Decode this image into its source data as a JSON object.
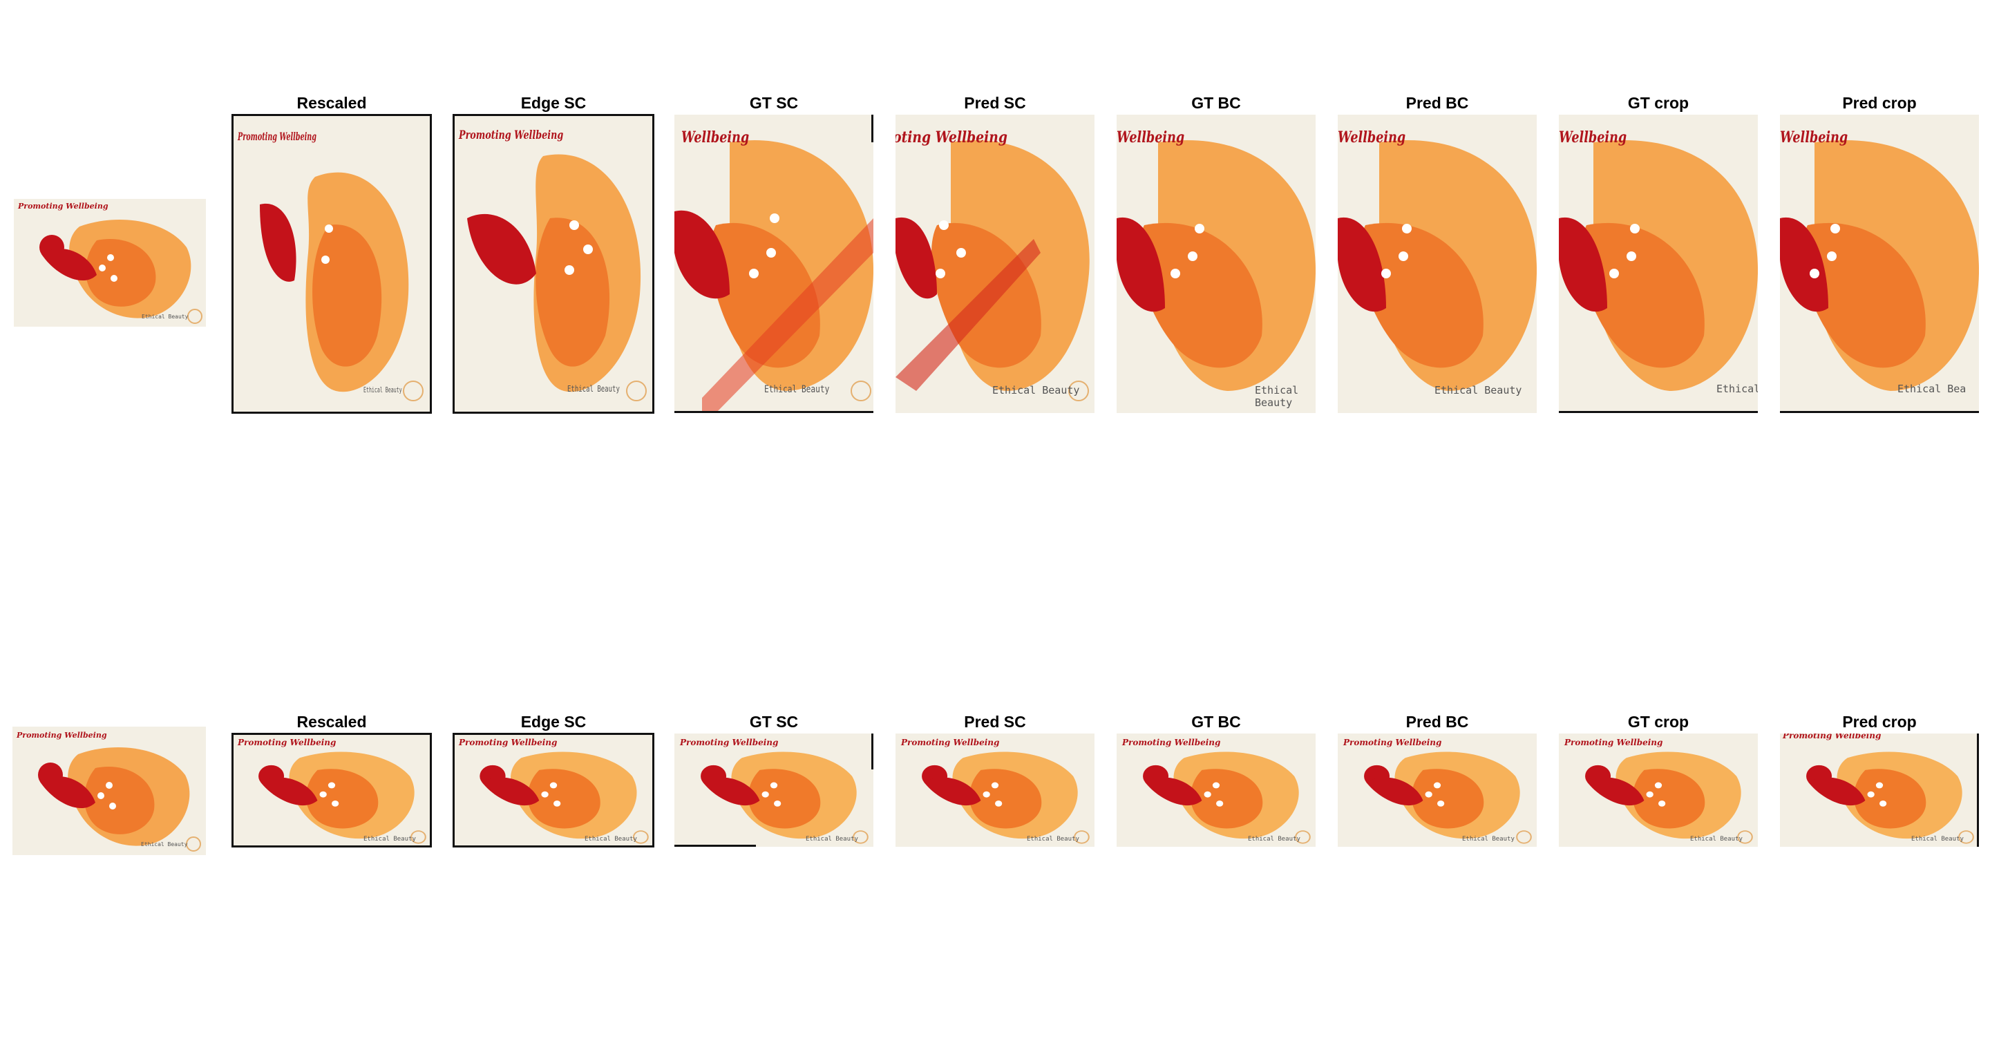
{
  "rows": [
    {
      "label": "row-1",
      "cells": [
        {
          "title": "",
          "image_text": "Promoting Wellbeing",
          "footer_text": "Ethical Beauty"
        },
        {
          "title": "Rescaled",
          "image_text": "Promoting Wellbeing",
          "footer_text": "Ethical Beauty"
        },
        {
          "title": "Edge SC",
          "image_text": "Promoting Wellbeing",
          "footer_text": "Ethical Beauty"
        },
        {
          "title": "GT SC",
          "image_text": "Wellbeing",
          "footer_text": "Ethical Beauty"
        },
        {
          "title": "Pred SC",
          "image_text": "Promoting Wellbeing",
          "footer_text": "Ethical Beauty"
        },
        {
          "title": "GT BC",
          "image_text": "Wellbeing",
          "footer_text": "Ethical Beauty"
        },
        {
          "title": "Pred BC",
          "image_text": "Wellbeing",
          "footer_text": "Ethical Beauty"
        },
        {
          "title": "GT crop",
          "image_text": "Wellbeing",
          "footer_text": "Ethical"
        },
        {
          "title": "Pred crop",
          "image_text": "Wellbeing",
          "footer_text": "Ethical Bea"
        }
      ]
    },
    {
      "label": "row-2",
      "cells": [
        {
          "title": "",
          "image_text": "Promoting Wellbeing",
          "footer_text": "Ethical Beauty"
        },
        {
          "title": "Rescaled",
          "image_text": "Promoting Wellbeing",
          "footer_text": "Ethical Beauty"
        },
        {
          "title": "Edge SC",
          "image_text": "Promoting Wellbeing",
          "footer_text": "Ethical Beauty"
        },
        {
          "title": "GT SC",
          "image_text": "Promoting Wellbeing",
          "footer_text": "Ethical Beauty"
        },
        {
          "title": "Pred SC",
          "image_text": "Promoting Wellbeing",
          "footer_text": "Ethical Beauty"
        },
        {
          "title": "GT BC",
          "image_text": "Promoting Wellbeing",
          "footer_text": "Ethical Beauty"
        },
        {
          "title": "Pred BC",
          "image_text": "Promoting Wellbeing",
          "footer_text": "Ethical Beauty"
        },
        {
          "title": "GT crop",
          "image_text": "Promoting Wellbeing",
          "footer_text": "Ethical Beauty"
        },
        {
          "title": "Pred crop",
          "image_text": "Promoting Wellbeing",
          "footer_text": "Ethical Beauty"
        }
      ]
    }
  ],
  "colors": {
    "paper": "#f4f0e6",
    "red": "#c4121a",
    "orange": "#f07a2a",
    "light_orange": "#f7b25a",
    "title_text": "#b0141c"
  }
}
